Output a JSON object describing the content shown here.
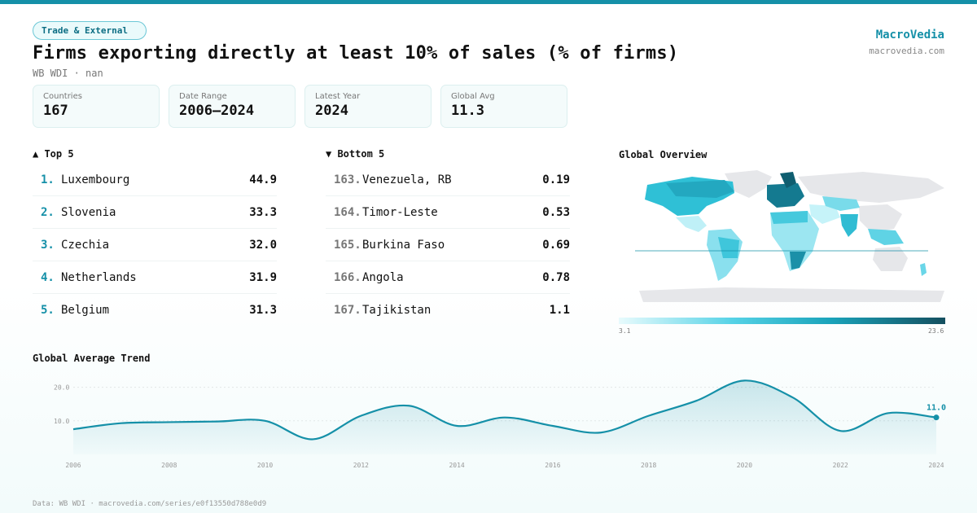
{
  "header": {
    "category_badge": "Trade & External",
    "title": "Firms exporting directly at least 10% of sales (% of firms)",
    "subtitle": "WB WDI · nan",
    "brand": "MacroVedia",
    "brand_url": "macrovedia.com"
  },
  "stats": [
    {
      "label": "Countries",
      "value": "167"
    },
    {
      "label": "Date Range",
      "value": "2006–2024"
    },
    {
      "label": "Latest Year",
      "value": "2024"
    },
    {
      "label": "Global Avg",
      "value": "11.3"
    }
  ],
  "top5": {
    "heading": "▲ Top 5",
    "items": [
      {
        "rank": "1.",
        "name": "Luxembourg",
        "value": "44.9"
      },
      {
        "rank": "2.",
        "name": "Slovenia",
        "value": "33.3"
      },
      {
        "rank": "3.",
        "name": "Czechia",
        "value": "32.0"
      },
      {
        "rank": "4.",
        "name": "Netherlands",
        "value": "31.9"
      },
      {
        "rank": "5.",
        "name": "Belgium",
        "value": "31.3"
      }
    ]
  },
  "bottom5": {
    "heading": "▼ Bottom 5",
    "items": [
      {
        "rank": "163.",
        "name": "Venezuela, RB",
        "value": "0.19"
      },
      {
        "rank": "164.",
        "name": "Timor-Leste",
        "value": "0.53"
      },
      {
        "rank": "165.",
        "name": "Burkina Faso",
        "value": "0.69"
      },
      {
        "rank": "166.",
        "name": "Angola",
        "value": "0.78"
      },
      {
        "rank": "167.",
        "name": "Tajikistan",
        "value": "1.1"
      }
    ]
  },
  "map": {
    "heading": "Global Overview",
    "legend_min": "3.1",
    "legend_max": "23.6",
    "colors": {
      "light": "#e8fbfd",
      "mid": "#55d2e6",
      "dark": "#144f5f",
      "nodata": "#e6e7ea"
    }
  },
  "trend": {
    "heading": "Global Average Trend"
  },
  "chart_data": {
    "type": "line",
    "title": "Global Average Trend",
    "x": [
      2006,
      2007,
      2008,
      2009,
      2010,
      2011,
      2012,
      2013,
      2014,
      2015,
      2016,
      2017,
      2018,
      2019,
      2020,
      2021,
      2022,
      2023,
      2024
    ],
    "values": [
      7.5,
      9.3,
      9.6,
      9.8,
      10.0,
      4.5,
      11.5,
      14.5,
      8.5,
      11.0,
      8.5,
      6.5,
      11.5,
      16.0,
      22.0,
      17.0,
      7.0,
      12.3,
      11.0
    ],
    "x_ticks": [
      "2006",
      "2008",
      "2010",
      "2012",
      "2014",
      "2016",
      "2018",
      "2020",
      "2022",
      "2024"
    ],
    "y_ticks": [
      "10.0",
      "20.0"
    ],
    "ylim": [
      0,
      25
    ],
    "last_label": "11.0",
    "color": "#1590a8"
  },
  "footer": "Data: WB WDI · macrovedia.com/series/e0f13550d788e0d9"
}
